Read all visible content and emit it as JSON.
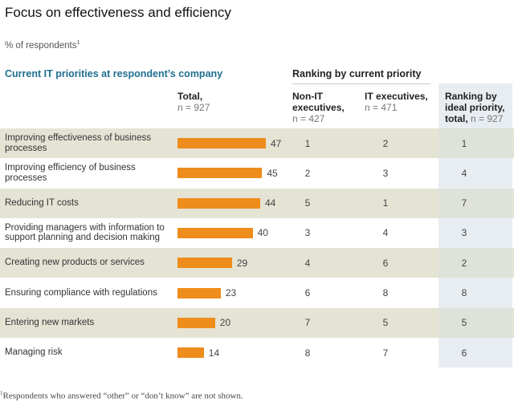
{
  "title": "Focus on effectiveness and efficiency",
  "subtitle": "% of respondents",
  "subtitle_sup": "1",
  "section_title": "Current IT priorities at respondent’s company",
  "ranking_header": "Ranking by current priority",
  "columns": {
    "total": {
      "label": "Total,",
      "n": "n = 927"
    },
    "non_it": {
      "label1": "Non-IT",
      "label2": "executives,",
      "n": "n = 427"
    },
    "it": {
      "label": "IT executives,",
      "n": "n = 471"
    },
    "ideal": {
      "label1": "Ranking by",
      "label2": "ideal priority,",
      "label3": "total,",
      "n": "n = 927"
    }
  },
  "colors": {
    "bar": "#ee8c1c",
    "section_title": "#1f6e8f",
    "band": "#e5e3d4",
    "ideal_column": "#e8edf2"
  },
  "footnote_sup": "1",
  "footnote": "Respondents who answered “other” or “don’t know” are not shown.",
  "chart_data": {
    "type": "bar",
    "orientation": "horizontal",
    "title": "Focus on effectiveness and efficiency",
    "subtitle": "% of respondents",
    "categories": [
      "Improving effectiveness of business processes",
      "Improving efficiency of business processes",
      "Reducing IT costs",
      "Providing managers with information to support planning and decision making",
      "Creating new products or services",
      "Ensuring compliance with regulations",
      "Entering new markets",
      "Managing risk"
    ],
    "series": [
      {
        "name": "Total, n = 927",
        "values": [
          47,
          45,
          44,
          40,
          29,
          23,
          20,
          14
        ]
      }
    ],
    "table_columns": [
      {
        "name": "Non-IT executives, n = 427 (ranking by current priority)",
        "values": [
          1,
          2,
          5,
          3,
          4,
          6,
          7,
          8
        ]
      },
      {
        "name": "IT executives, n = 471 (ranking by current priority)",
        "values": [
          2,
          3,
          1,
          4,
          6,
          8,
          5,
          7
        ]
      },
      {
        "name": "Ranking by ideal priority, total, n = 927",
        "values": [
          1,
          4,
          7,
          3,
          2,
          8,
          5,
          6
        ]
      }
    ],
    "xlim": [
      0,
      50
    ],
    "grid": false,
    "legend": "none"
  }
}
